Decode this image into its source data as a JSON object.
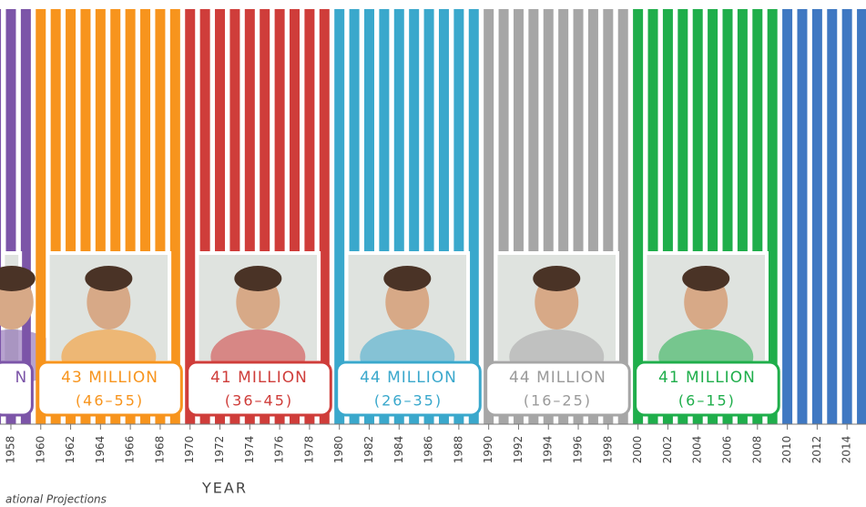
{
  "chart_data": {
    "type": "bar",
    "x_label": "YEAR",
    "source": "ational Projections",
    "xlim": [
      1957.27,
      2015.27
    ],
    "xticks": [
      1958,
      1960,
      1962,
      1964,
      1966,
      1968,
      1970,
      1972,
      1974,
      1976,
      1978,
      1980,
      1982,
      1984,
      1986,
      1988,
      1990,
      1992,
      1994,
      1996,
      1998,
      2000,
      2002,
      2004,
      2006,
      2008,
      2010,
      2012,
      2014
    ],
    "groups": [
      {
        "label": "N",
        "color": "#7c55a8",
        "from": 1957,
        "to": 1959
      },
      {
        "label": "43 MILLION",
        "range": "(46–55)",
        "color": "#f7941d",
        "from": 1960,
        "to": 1969
      },
      {
        "label": "41 MILLION",
        "range": "(36–45)",
        "color": "#cf3d3a",
        "from": 1970,
        "to": 1979
      },
      {
        "label": "44 MILLION",
        "range": "(26–35)",
        "color": "#3aa8cc",
        "from": 1980,
        "to": 1989
      },
      {
        "label": "44 MILLION",
        "range": "(16–25)",
        "color": "#a6a6a6",
        "from": 1990,
        "to": 1999
      },
      {
        "label": "41 MILLION",
        "range": "(6–15)",
        "color": "#1fae4b",
        "from": 2000,
        "to": 2009
      },
      {
        "color": "#3f78c2",
        "from": 2010,
        "to": 2015
      }
    ]
  }
}
